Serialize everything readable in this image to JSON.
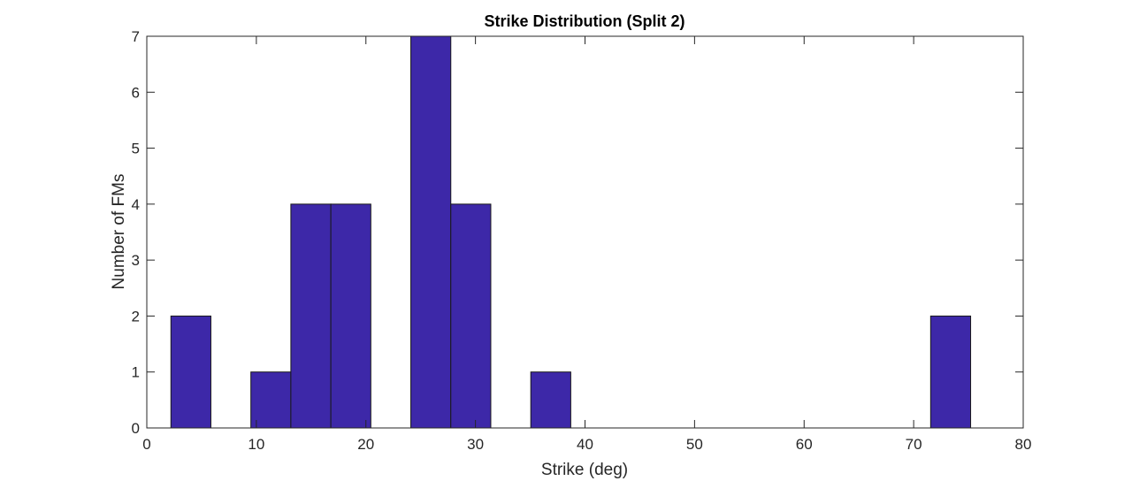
{
  "chart_data": {
    "type": "bar",
    "title": "Strike Distribution (Split 2)",
    "xlabel": "Strike (deg)",
    "ylabel": "Number of FMs",
    "xlim": [
      0,
      80
    ],
    "ylim": [
      0,
      7
    ],
    "xticks": [
      0,
      10,
      20,
      30,
      40,
      50,
      60,
      70,
      80
    ],
    "yticks": [
      0,
      1,
      2,
      3,
      4,
      5,
      6,
      7
    ],
    "grid": false,
    "bar_color": "#3d28a8",
    "bins": [
      {
        "x0": 2.2,
        "x1": 5.85,
        "count": 2
      },
      {
        "x0": 5.85,
        "x1": 9.5,
        "count": 0
      },
      {
        "x0": 9.5,
        "x1": 13.15,
        "count": 1
      },
      {
        "x0": 13.15,
        "x1": 16.8,
        "count": 4
      },
      {
        "x0": 16.8,
        "x1": 20.45,
        "count": 4
      },
      {
        "x0": 20.45,
        "x1": 24.1,
        "count": 0
      },
      {
        "x0": 24.1,
        "x1": 27.75,
        "count": 7
      },
      {
        "x0": 27.75,
        "x1": 31.4,
        "count": 4
      },
      {
        "x0": 31.4,
        "x1": 35.05,
        "count": 0
      },
      {
        "x0": 35.05,
        "x1": 38.7,
        "count": 1
      },
      {
        "x0": 38.7,
        "x1": 42.35,
        "count": 0
      },
      {
        "x0": 42.35,
        "x1": 46.0,
        "count": 0
      },
      {
        "x0": 46.0,
        "x1": 49.65,
        "count": 0
      },
      {
        "x0": 49.65,
        "x1": 53.3,
        "count": 0
      },
      {
        "x0": 53.3,
        "x1": 56.95,
        "count": 0
      },
      {
        "x0": 56.95,
        "x1": 60.6,
        "count": 0
      },
      {
        "x0": 60.6,
        "x1": 64.25,
        "count": 0
      },
      {
        "x0": 64.25,
        "x1": 67.9,
        "count": 0
      },
      {
        "x0": 67.9,
        "x1": 71.55,
        "count": 0
      },
      {
        "x0": 71.55,
        "x1": 75.2,
        "count": 2
      }
    ]
  }
}
